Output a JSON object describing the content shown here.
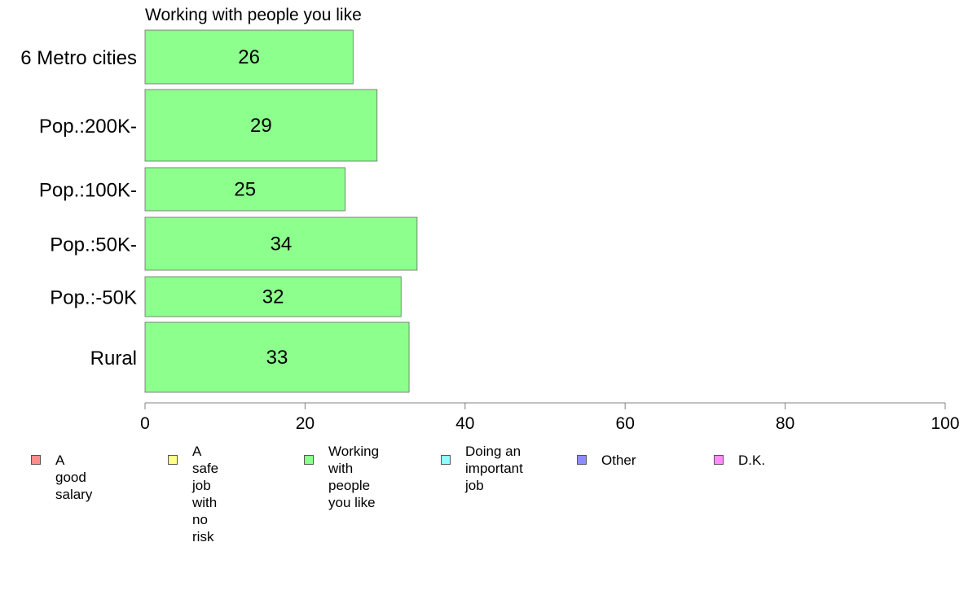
{
  "chart_data": {
    "type": "bar",
    "orientation": "horizontal",
    "title": "Working with people you like",
    "categories": [
      "6 Metro cities",
      "Pop.:200K-",
      "Pop.:100K-",
      "Pop.:50K-",
      "Pop.:-50K",
      "Rural"
    ],
    "values": [
      26,
      29,
      25,
      34,
      32,
      33
    ],
    "data_labels": [
      "26",
      "29",
      "25",
      "34",
      "32",
      "33"
    ],
    "series_color": "#8cff8c",
    "xlim": [
      0,
      100
    ],
    "x_ticks": [
      "0",
      "20",
      "40",
      "60",
      "80",
      "100"
    ],
    "grid": false,
    "legend_position": "bottom",
    "legend": [
      {
        "label": "A good salary",
        "color": "#ff8c8c"
      },
      {
        "label": "A safe job\nwith no risk",
        "color": "#ffff8c"
      },
      {
        "label": "Working with\npeople you like",
        "color": "#8cff8c"
      },
      {
        "label": "Doing an\nimportant job",
        "color": "#8cffff"
      },
      {
        "label": "Other",
        "color": "#8c8cff"
      },
      {
        "label": "D.K.",
        "color": "#ff8cff"
      }
    ]
  }
}
